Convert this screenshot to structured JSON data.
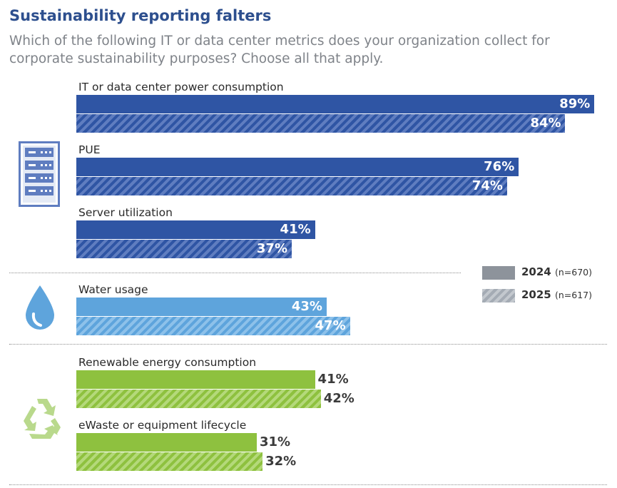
{
  "title": "Sustainability reporting falters",
  "subtitle": "Which of the following IT or data center metrics does your organization collect for corporate sustainability purposes? Choose all that apply.",
  "legend": {
    "y2024": {
      "label": "2024",
      "n": "(n=670)"
    },
    "y2025": {
      "label": "2025",
      "n": "(n=617)"
    }
  },
  "colors": {
    "it_solid": "#2f55a4",
    "it_stripe": "#5f7dc0",
    "water_solid": "#5ea4dc",
    "water_stripe": "#8dc1ea",
    "energy_solid": "#8ec13f",
    "energy_stripe": "#b4d97a",
    "legend_solid": "#8d939b",
    "legend_stripe": "#c3c8ce"
  },
  "icons": [
    "server-rack-icon",
    "water-drop-icon",
    "recycle-icon"
  ],
  "chart_data": {
    "type": "bar",
    "orientation": "horizontal",
    "title": "Sustainability reporting falters",
    "unit": "%",
    "xlim": [
      0,
      100
    ],
    "series_names": [
      "2024",
      "2025"
    ],
    "categories": [
      {
        "label": "IT or data center power consumption",
        "group": "it",
        "v2024": 89,
        "v2025": 84,
        "t2024": "89%",
        "t2025": "84%"
      },
      {
        "label": "PUE",
        "group": "it",
        "v2024": 76,
        "v2025": 74,
        "t2024": "76%",
        "t2025": "74%"
      },
      {
        "label": "Server utilization",
        "group": "it",
        "v2024": 41,
        "v2025": 37,
        "t2024": "41%",
        "t2025": "37%"
      },
      {
        "label": "Water usage",
        "group": "water",
        "v2024": 43,
        "v2025": 47,
        "t2024": "43%",
        "t2025": "47%"
      },
      {
        "label": "Renewable energy consumption",
        "group": "energy",
        "v2024": 41,
        "v2025": 42,
        "t2024": "41%",
        "t2025": "42%"
      },
      {
        "label": "eWaste or equipment lifecycle",
        "group": "energy",
        "v2024": 31,
        "v2025": 32,
        "t2024": "31%",
        "t2025": "32%"
      }
    ]
  }
}
